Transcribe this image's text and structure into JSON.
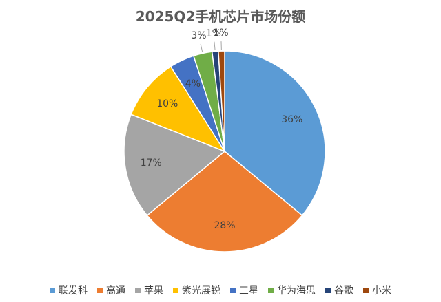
{
  "chart_data": {
    "type": "pie",
    "title": "2025Q2手机芯片市场份额",
    "categories": [
      "联发科",
      "高通",
      "苹果",
      "紫光展锐",
      "三星",
      "华为海思",
      "谷歌",
      "小米"
    ],
    "values": [
      36,
      28,
      17,
      10,
      4,
      3,
      1,
      1
    ],
    "data_labels": [
      "36%",
      "28%",
      "17%",
      "10%",
      "4%",
      "3%",
      "1%",
      "1%"
    ],
    "colors": [
      "#5B9BD5",
      "#ED7D31",
      "#A5A5A5",
      "#FFC000",
      "#4472C4",
      "#70AD47",
      "#264478",
      "#9E480E"
    ],
    "legend_position": "bottom",
    "start_angle_deg": 0,
    "direction": "clockwise"
  }
}
